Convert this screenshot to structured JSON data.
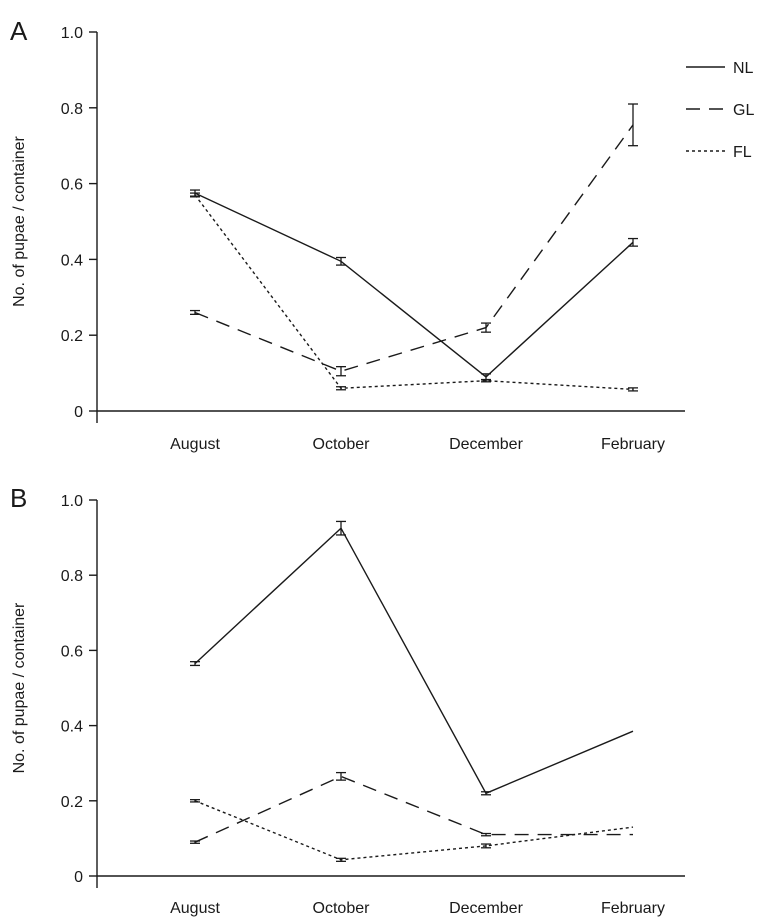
{
  "chart_data": [
    {
      "type": "line",
      "panel_label": "A",
      "categories": [
        "August",
        "October",
        "December",
        "February"
      ],
      "ylabel": "No. of pupae / container",
      "xlabel": "",
      "ylim": [
        0,
        1.0
      ],
      "yticks": [
        "0",
        "0.2",
        "0.4",
        "0.6",
        "0.8",
        "1.0"
      ],
      "legend": {
        "position": "top-right",
        "show": true
      },
      "series": [
        {
          "name": "NL",
          "style": "solid",
          "values": [
            0.575,
            0.395,
            0.09,
            0.445
          ],
          "errors": [
            0.008,
            0.01,
            0.008,
            0.01
          ]
        },
        {
          "name": "GL",
          "style": "dashed",
          "values": [
            0.26,
            0.105,
            0.22,
            0.755
          ],
          "errors": [
            0.005,
            0.012,
            0.012,
            0.055
          ]
        },
        {
          "name": "FL",
          "style": "dotted",
          "values": [
            0.57,
            0.06,
            0.08,
            0.057
          ],
          "errors": [
            0.005,
            0.004,
            0.003,
            0.004
          ]
        }
      ]
    },
    {
      "type": "line",
      "panel_label": "B",
      "categories": [
        "August",
        "October",
        "December",
        "February"
      ],
      "ylabel": "No. of pupae / container",
      "xlabel": "",
      "ylim": [
        0,
        1.0
      ],
      "yticks": [
        "0",
        "0.2",
        "0.4",
        "0.6",
        "0.8",
        "1.0"
      ],
      "legend": {
        "show": false
      },
      "series": [
        {
          "name": "NL",
          "style": "solid",
          "values": [
            0.565,
            0.925,
            0.22,
            0.385
          ],
          "errors": [
            0.005,
            0.018,
            0.004,
            0
          ]
        },
        {
          "name": "GL",
          "style": "dashed",
          "values": [
            0.09,
            0.265,
            0.11,
            0.11
          ],
          "errors": [
            0.003,
            0.01,
            0.003,
            0
          ]
        },
        {
          "name": "FL",
          "style": "dotted",
          "values": [
            0.2,
            0.043,
            0.08,
            0.13
          ],
          "errors": [
            0.003,
            0.004,
            0.005,
            0
          ]
        }
      ]
    }
  ]
}
